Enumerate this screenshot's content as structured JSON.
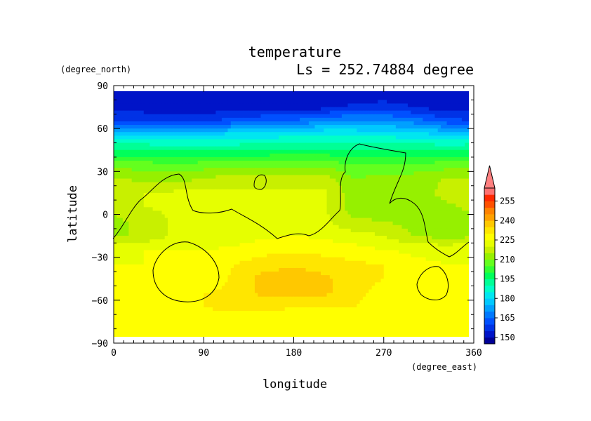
{
  "chart_data": {
    "type": "heatmap",
    "title": "temperature",
    "subtitle": "Ls = 252.74884 degree",
    "xlabel": "longitude",
    "ylabel": "latitude",
    "xunit": "(degree_east)",
    "yunit": "(degree_north)",
    "xlim": [
      0,
      360
    ],
    "ylim": [
      -90,
      90
    ],
    "xticks": [
      0,
      90,
      180,
      270,
      360
    ],
    "yticks": [
      90,
      60,
      30,
      0,
      -30,
      -60,
      -90
    ],
    "colorbar": {
      "labels": [
        255,
        240,
        225,
        210,
        195,
        180,
        165,
        150
      ],
      "levels": [
        145,
        150,
        155,
        160,
        165,
        170,
        175,
        180,
        185,
        190,
        195,
        200,
        205,
        210,
        215,
        220,
        225,
        230,
        235,
        240,
        245,
        250,
        255,
        260
      ],
      "colors": [
        "#000096",
        "#0014c8",
        "#0032e6",
        "#0050ff",
        "#0078ff",
        "#00a0ff",
        "#00c8ff",
        "#00e6f0",
        "#00ffc8",
        "#00ff96",
        "#00ff5a",
        "#32ff32",
        "#64ff1e",
        "#96f000",
        "#c8f000",
        "#e6ff00",
        "#ffff00",
        "#ffe600",
        "#ffc800",
        "#ffa000",
        "#ff8200",
        "#ff5000",
        "#ff2800",
        "#ff7070"
      ],
      "overflow_color": "#ff8080"
    },
    "field_samples": {
      "lat": [
        85,
        75,
        65,
        55,
        45,
        35,
        25,
        15,
        5,
        -5,
        -15,
        -25,
        -35,
        -45,
        -55,
        -65,
        -75,
        -85
      ],
      "lon": [
        0,
        30,
        60,
        90,
        120,
        150,
        180,
        210,
        240,
        270,
        300,
        330,
        360
      ],
      "temperature": [
        [
          152,
          152,
          152,
          152,
          152,
          152,
          152,
          152,
          152,
          152,
          152,
          152,
          152
        ],
        [
          152,
          152,
          152,
          152,
          152,
          152,
          152,
          153,
          156,
          157,
          155,
          152,
          152
        ],
        [
          160,
          160,
          158,
          158,
          163,
          165,
          166,
          170,
          172,
          171,
          168,
          163,
          160
        ],
        [
          182,
          182,
          182,
          182,
          183,
          183,
          184,
          186,
          185,
          184,
          183,
          181,
          182
        ],
        [
          195,
          195,
          194,
          194,
          194,
          195,
          196,
          196,
          194,
          195,
          195,
          195,
          195
        ],
        [
          208,
          207,
          205,
          207,
          207,
          208,
          208,
          208,
          205,
          205,
          205,
          207,
          208
        ],
        [
          215,
          214,
          213,
          215,
          218,
          218,
          218,
          218,
          210,
          212,
          213,
          215,
          215
        ],
        [
          218,
          220,
          221,
          221,
          221,
          221,
          221,
          221,
          212,
          213,
          213,
          216,
          218
        ],
        [
          216,
          220,
          221,
          221,
          221,
          222,
          222,
          221,
          212,
          212,
          213,
          214,
          216
        ],
        [
          214,
          216,
          221,
          221,
          221,
          222,
          222,
          221,
          216,
          215,
          213,
          212,
          214
        ],
        [
          214,
          216,
          221,
          221,
          222,
          224,
          225,
          224,
          222,
          220,
          215,
          213,
          214
        ],
        [
          224,
          225,
          225,
          225,
          226,
          228,
          229,
          228,
          227,
          225,
          224,
          224,
          224
        ],
        [
          225,
          225,
          226,
          226,
          230,
          233,
          234,
          233,
          231,
          230,
          226,
          225,
          225
        ],
        [
          225,
          225,
          225,
          226,
          231,
          237,
          238,
          236,
          232,
          230,
          226,
          225,
          225
        ],
        [
          225,
          225,
          226,
          230,
          231,
          237,
          237,
          236,
          232,
          228,
          225,
          225,
          225
        ],
        [
          225,
          226,
          230,
          230,
          231,
          231,
          230,
          230,
          230,
          226,
          225,
          225,
          225
        ],
        [
          225,
          227,
          228,
          228,
          228,
          228,
          228,
          228,
          227,
          225,
          225,
          225,
          225
        ],
        [
          225,
          225,
          225,
          225,
          225,
          225,
          225,
          225,
          225,
          225,
          225,
          225,
          225
        ]
      ]
    }
  }
}
